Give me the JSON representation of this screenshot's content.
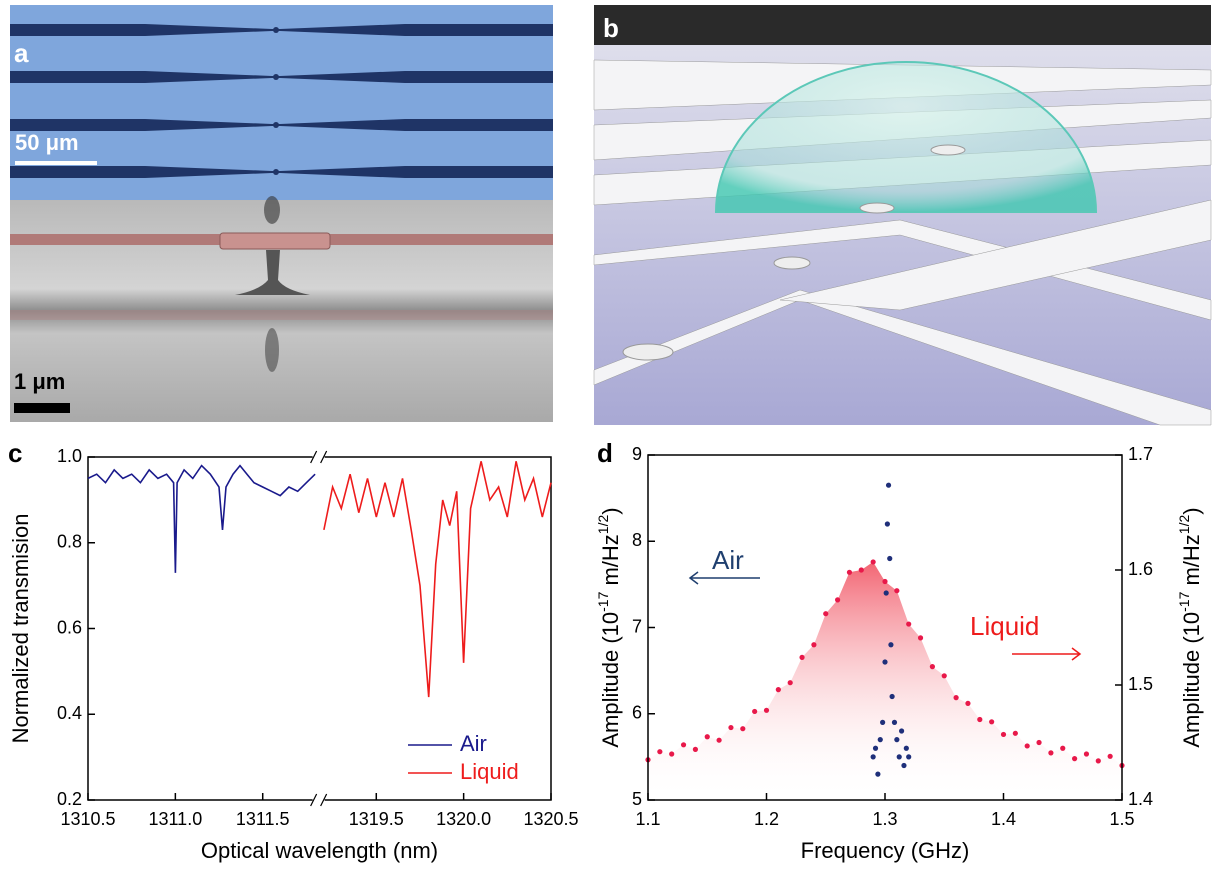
{
  "images": [
    {
      "label": "a",
      "scale_bars": [
        "50 μm",
        "1 μm"
      ]
    },
    {
      "label": "b"
    }
  ],
  "chart_data": [
    {
      "type": "line",
      "panel": "c",
      "xlabel": "Optical wavelength (nm)",
      "ylabel": "Normalized transmision",
      "x_segments": [
        {
          "xlim": [
            1310.5,
            1311.82
          ],
          "xticks": [
            1310.5,
            {
              "value": 1311,
              "label": "1311.0"
            },
            1311.5
          ]
        },
        {
          "xlim": [
            1319.17,
            1320.5
          ],
          "xticks": [
            1319.5,
            {
              "value": 1320,
              "label": "1320.0"
            },
            1320.5
          ]
        }
      ],
      "ylim": [
        0.2,
        1.0
      ],
      "yticks": [
        0.2,
        0.4,
        0.6,
        0.8,
        {
          "value": 1,
          "label": "1.0"
        }
      ],
      "legend": "lower right",
      "series": [
        {
          "name": "Air",
          "color": "#1a1a8c",
          "x": [
            1310.5,
            1310.55,
            1310.6,
            1310.65,
            1310.7,
            1310.75,
            1310.8,
            1310.85,
            1310.9,
            1310.95,
            1310.99,
            1311.0,
            1311.01,
            1311.05,
            1311.1,
            1311.15,
            1311.2,
            1311.25,
            1311.27,
            1311.29,
            1311.33,
            1311.37,
            1311.41,
            1311.45,
            1311.5,
            1311.55,
            1311.6,
            1311.65,
            1311.7,
            1311.75,
            1311.8
          ],
          "values": [
            0.95,
            0.96,
            0.94,
            0.97,
            0.95,
            0.96,
            0.94,
            0.97,
            0.95,
            0.96,
            0.94,
            0.73,
            0.94,
            0.97,
            0.95,
            0.98,
            0.96,
            0.93,
            0.83,
            0.93,
            0.96,
            0.98,
            0.96,
            0.94,
            0.93,
            0.92,
            0.91,
            0.93,
            0.92,
            0.94,
            0.96
          ]
        },
        {
          "name": "Liquid",
          "color": "#ee1c1c",
          "x": [
            1319.2,
            1319.25,
            1319.3,
            1319.35,
            1319.4,
            1319.45,
            1319.5,
            1319.55,
            1319.6,
            1319.65,
            1319.7,
            1319.75,
            1319.8,
            1319.84,
            1319.88,
            1319.92,
            1319.96,
            1320.0,
            1320.04,
            1320.1,
            1320.15,
            1320.2,
            1320.25,
            1320.3,
            1320.35,
            1320.4,
            1320.45,
            1320.5
          ],
          "values": [
            0.83,
            0.93,
            0.88,
            0.96,
            0.87,
            0.95,
            0.86,
            0.94,
            0.86,
            0.95,
            0.83,
            0.7,
            0.44,
            0.75,
            0.9,
            0.84,
            0.92,
            0.52,
            0.88,
            0.99,
            0.9,
            0.93,
            0.86,
            0.99,
            0.9,
            0.95,
            0.86,
            0.94
          ]
        }
      ]
    },
    {
      "type": "scatter",
      "panel": "d",
      "xlabel": "Frequency (GHz)",
      "ylabel": [
        "Amplitude (10",
        "-17",
        " m/Hz",
        "1/2",
        ")"
      ],
      "y2label": [
        "Amplitude (10",
        "-17",
        " m/Hz",
        "1/2",
        ")"
      ],
      "xlim": [
        1.1,
        1.5
      ],
      "xticks": [
        1.1,
        1.2,
        1.3,
        1.4,
        1.5
      ],
      "ylim": [
        5,
        9
      ],
      "yticks": [
        5,
        6,
        7,
        8,
        9
      ],
      "y2lim": [
        1.4,
        1.7
      ],
      "y2ticks": [
        1.4,
        1.5,
        1.6,
        1.7
      ],
      "series": [
        {
          "name": "Liquid",
          "axis": "y2",
          "color": "#e8194a",
          "fill": true,
          "x": [
            1.1,
            1.11,
            1.12,
            1.13,
            1.14,
            1.15,
            1.16,
            1.17,
            1.18,
            1.19,
            1.2,
            1.21,
            1.22,
            1.23,
            1.24,
            1.25,
            1.26,
            1.27,
            1.28,
            1.29,
            1.3,
            1.31,
            1.32,
            1.33,
            1.34,
            1.35,
            1.36,
            1.37,
            1.38,
            1.39,
            1.4,
            1.41,
            1.42,
            1.43,
            1.44,
            1.45,
            1.46,
            1.47,
            1.48,
            1.49,
            1.5
          ],
          "values": [
            1.435,
            1.442,
            1.44,
            1.448,
            1.444,
            1.455,
            1.452,
            1.463,
            1.462,
            1.477,
            1.478,
            1.496,
            1.502,
            1.524,
            1.535,
            1.562,
            1.574,
            1.598,
            1.6,
            1.607,
            1.59,
            1.582,
            1.553,
            1.541,
            1.516,
            1.508,
            1.489,
            1.484,
            1.47,
            1.468,
            1.457,
            1.458,
            1.447,
            1.45,
            1.441,
            1.445,
            1.436,
            1.44,
            1.434,
            1.438,
            1.43
          ]
        },
        {
          "name": "Air",
          "axis": "y",
          "color": "#1f2f7a",
          "x": [
            1.29,
            1.292,
            1.294,
            1.296,
            1.298,
            1.3,
            1.301,
            1.302,
            1.303,
            1.304,
            1.305,
            1.306,
            1.308,
            1.31,
            1.312,
            1.314,
            1.316,
            1.318,
            1.32
          ],
          "values": [
            5.5,
            5.6,
            5.3,
            5.7,
            5.9,
            6.6,
            7.4,
            8.2,
            8.65,
            7.8,
            6.8,
            6.2,
            5.9,
            5.7,
            5.5,
            5.8,
            5.4,
            5.6,
            5.5
          ]
        }
      ],
      "annotations": [
        {
          "text": "Air",
          "color": "#1f3f6f"
        },
        {
          "text": "Liquid",
          "color": "#ee1c1c"
        }
      ]
    }
  ]
}
